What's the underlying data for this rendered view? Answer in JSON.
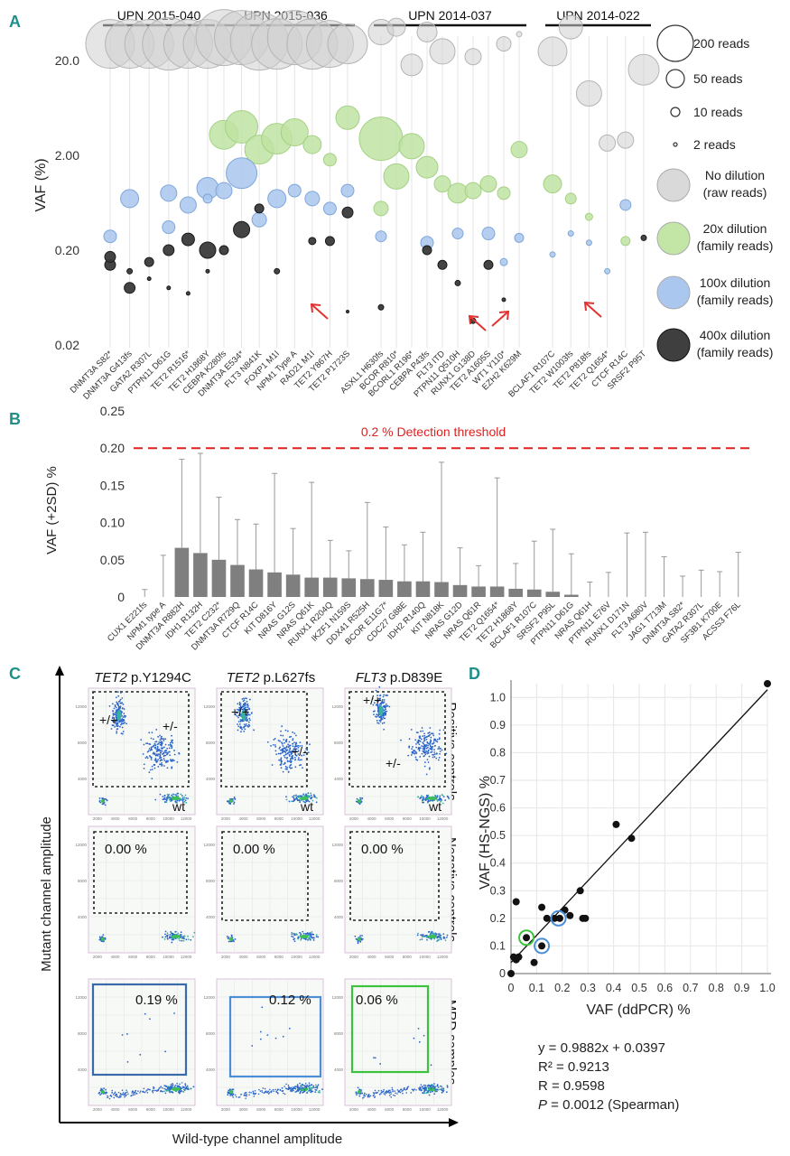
{
  "colors": {
    "panel_letter": "#1f8f8a",
    "raw": "#cfcfcf",
    "family20": "#bfe3a3",
    "family100": "#a9c7ee",
    "family400": "#3a3a3a",
    "threshold": "#e02020",
    "bar": "#7f7f7f",
    "gate_blue_dark": "#3b6aa8",
    "gate_blue": "#4d8fd6",
    "gate_green": "#3cc23c",
    "arrow": "#e33030"
  },
  "chart_data": [
    {
      "panel": "A",
      "type": "scatter",
      "ylabel": "VAF (%)",
      "scale": "log",
      "y_ticks": [
        "20.0",
        "2.00",
        "0.20",
        "0.02"
      ],
      "groups": [
        {
          "name": "UPN 2015-040",
          "labels": [
            "DNMT3A S82*",
            "DNMT3A G413fs",
            "GATA2 R307L",
            "PTPN11 D61G",
            "TET2 R1516*",
            "TET2 H1868Y"
          ]
        },
        {
          "name": "UPN 2015-036",
          "labels": [
            "CEBPA K280fs",
            "DNMT3A E534*",
            "FLT3 N841K",
            "FOXP1 M1I",
            "NPM1 Type A",
            "RAD21 M1I",
            "TET2 Y867H",
            "TET2 P1723S"
          ]
        },
        {
          "name": "UPN 2014-037",
          "labels": [
            "ASXL1 H630fs",
            "BCOR R810*",
            "BCORL1 R196*",
            "CEBPA P43fs",
            "FLT3 ITD",
            "PTPN11 Q510H",
            "RUNX1 G138D",
            "TET2 A1605S",
            "WT1 Y110*",
            "EZH2 K629M"
          ]
        },
        {
          "name": "UPN 2014-022",
          "labels": [
            "BCLAF1 R107C",
            "TET2 W1003fs",
            "TET2 P818fs",
            "TET2 Q1654*",
            "CTCF R14C",
            "SRSF2 P95T"
          ]
        }
      ],
      "legend_sizes": [
        {
          "label": "200 reads",
          "reads": 200
        },
        {
          "label": "50 reads",
          "reads": 50
        },
        {
          "label": "10 reads",
          "reads": 10
        },
        {
          "label": "2 reads",
          "reads": 2
        }
      ],
      "legend_series": [
        {
          "label1": "No dilution",
          "label2": "(raw reads)",
          "color": "#d9d9d9"
        },
        {
          "label1": "20x dilution",
          "label2": "(family reads)",
          "color": "#c3e6a6"
        },
        {
          "label1": "100x dilution",
          "label2": "(family reads)",
          "color": "#aac8ef"
        },
        {
          "label1": "400x dilution",
          "label2": "(family reads)",
          "color": "#3f3f3f"
        }
      ],
      "points": [
        {
          "m": 0,
          "s": 0,
          "vaf": 30,
          "r": 27
        },
        {
          "m": 1,
          "s": 0,
          "vaf": 30,
          "r": 27
        },
        {
          "m": 2,
          "s": 0,
          "vaf": 30,
          "r": 27
        },
        {
          "m": 3,
          "s": 0,
          "vaf": 30,
          "r": 29
        },
        {
          "m": 4,
          "s": 0,
          "vaf": 30,
          "r": 27
        },
        {
          "m": 5,
          "s": 0,
          "vaf": 30,
          "r": 27
        },
        {
          "m": 1,
          "s": 2,
          "vaf": 0.7,
          "r": 10
        },
        {
          "m": 3,
          "s": 2,
          "vaf": 0.8,
          "r": 9
        },
        {
          "m": 5,
          "s": 2,
          "vaf": 0.9,
          "r": 12
        },
        {
          "m": 0,
          "s": 2,
          "vaf": 0.28,
          "r": 7
        },
        {
          "m": 3,
          "s": 2,
          "vaf": 0.35,
          "r": 7
        },
        {
          "m": 4,
          "s": 2,
          "vaf": 0.6,
          "r": 9
        },
        {
          "m": 0,
          "s": 3,
          "vaf": 0.14,
          "r": 6
        },
        {
          "m": 1,
          "s": 3,
          "vaf": 0.08,
          "r": 6
        },
        {
          "m": 2,
          "s": 3,
          "vaf": 0.15,
          "r": 5
        },
        {
          "m": 3,
          "s": 3,
          "vaf": 0.2,
          "r": 6
        },
        {
          "m": 4,
          "s": 3,
          "vaf": 0.26,
          "r": 7
        },
        {
          "m": 5,
          "s": 3,
          "vaf": 0.2,
          "r": 9
        },
        {
          "m": 0,
          "s": 0,
          "vaf": 35,
          "r": 31
        },
        {
          "m": 1,
          "s": 0,
          "vaf": 35,
          "r": 30
        },
        {
          "m": 2,
          "s": 0,
          "vaf": 32,
          "r": 32
        },
        {
          "m": 3,
          "s": 0,
          "vaf": 30,
          "r": 28
        },
        {
          "m": 4,
          "s": 0,
          "vaf": 35,
          "r": 30
        },
        {
          "m": 5,
          "s": 0,
          "vaf": 30,
          "r": 28
        },
        {
          "m": 6,
          "s": 0,
          "vaf": 30,
          "r": 26
        },
        {
          "m": 7,
          "s": 0,
          "vaf": 30,
          "r": 22
        },
        {
          "m": 0,
          "s": 1,
          "vaf": 3.3,
          "r": 16
        },
        {
          "m": 1,
          "s": 1,
          "vaf": 4.0,
          "r": 18
        },
        {
          "m": 2,
          "s": 1,
          "vaf": 2.3,
          "r": 16
        },
        {
          "m": 3,
          "s": 1,
          "vaf": 3.0,
          "r": 17
        },
        {
          "m": 4,
          "s": 1,
          "vaf": 3.5,
          "r": 15
        },
        {
          "m": 5,
          "s": 1,
          "vaf": 2.6,
          "r": 10
        },
        {
          "m": 6,
          "s": 1,
          "vaf": 1.8,
          "r": 7
        },
        {
          "m": 7,
          "s": 1,
          "vaf": 5.0,
          "r": 13
        },
        {
          "m": 0,
          "s": 2,
          "vaf": 0.85,
          "r": 9
        },
        {
          "m": 1,
          "s": 2,
          "vaf": 1.3,
          "r": 17
        },
        {
          "m": 2,
          "s": 2,
          "vaf": 0.42,
          "r": 8
        },
        {
          "m": 3,
          "s": 2,
          "vaf": 0.7,
          "r": 10
        },
        {
          "m": 4,
          "s": 2,
          "vaf": 0.85,
          "r": 7
        },
        {
          "m": 5,
          "s": 2,
          "vaf": 0.7,
          "r": 8
        },
        {
          "m": 6,
          "s": 2,
          "vaf": 0.55,
          "r": 7
        },
        {
          "m": 7,
          "s": 2,
          "vaf": 0.85,
          "r": 7
        },
        {
          "m": 0,
          "s": 3,
          "vaf": 0.2,
          "r": 5
        },
        {
          "m": 1,
          "s": 3,
          "vaf": 0.33,
          "r": 9
        },
        {
          "m": 2,
          "s": 3,
          "vaf": 0.55,
          "r": 5
        },
        {
          "m": 3,
          "s": 3,
          "vaf": 0.12,
          "r": 3
        },
        {
          "m": 5,
          "s": 3,
          "vaf": 0.25,
          "r": 4
        },
        {
          "m": 6,
          "s": 3,
          "vaf": 0.25,
          "r": 5
        },
        {
          "m": 7,
          "s": 3,
          "vaf": 0.5,
          "r": 6
        },
        {
          "m": 7,
          "s": 3,
          "vaf": 0.045,
          "r": 1.5
        },
        {
          "m": 0,
          "s": 0,
          "vaf": 40,
          "r": 14
        },
        {
          "m": 1,
          "s": 0,
          "vaf": 45,
          "r": 10
        },
        {
          "m": 2,
          "s": 0,
          "vaf": 18,
          "r": 12
        },
        {
          "m": 3,
          "s": 0,
          "vaf": 40,
          "r": 11
        },
        {
          "m": 4,
          "s": 0,
          "vaf": 25,
          "r": 14
        },
        {
          "m": 6,
          "s": 0,
          "vaf": 22,
          "r": 9
        },
        {
          "m": 8,
          "s": 0,
          "vaf": 30,
          "r": 8
        },
        {
          "m": 9,
          "s": 0,
          "vaf": 38,
          "r": 3
        },
        {
          "m": 0,
          "s": 1,
          "vaf": 3.0,
          "r": 24
        },
        {
          "m": 1,
          "s": 1,
          "vaf": 1.2,
          "r": 14
        },
        {
          "m": 2,
          "s": 1,
          "vaf": 2.5,
          "r": 14
        },
        {
          "m": 3,
          "s": 1,
          "vaf": 1.5,
          "r": 12
        },
        {
          "m": 4,
          "s": 1,
          "vaf": 1.0,
          "r": 9
        },
        {
          "m": 5,
          "s": 1,
          "vaf": 0.8,
          "r": 11
        },
        {
          "m": 6,
          "s": 1,
          "vaf": 0.85,
          "r": 9
        },
        {
          "m": 7,
          "s": 1,
          "vaf": 1.0,
          "r": 9
        },
        {
          "m": 8,
          "s": 1,
          "vaf": 0.8,
          "r": 7
        },
        {
          "m": 9,
          "s": 1,
          "vaf": 2.3,
          "r": 9
        },
        {
          "m": 0,
          "s": 1,
          "vaf": 0.55,
          "r": 8
        },
        {
          "m": 0,
          "s": 2,
          "vaf": 0.28,
          "r": 6
        },
        {
          "m": 3,
          "s": 2,
          "vaf": 0.24,
          "r": 7
        },
        {
          "m": 5,
          "s": 2,
          "vaf": 0.3,
          "r": 6
        },
        {
          "m": 7,
          "s": 2,
          "vaf": 0.3,
          "r": 7
        },
        {
          "m": 8,
          "s": 2,
          "vaf": 0.15,
          "r": 4
        },
        {
          "m": 9,
          "s": 2,
          "vaf": 0.27,
          "r": 5
        },
        {
          "m": 0,
          "s": 3,
          "vaf": 0.05,
          "r": 3
        },
        {
          "m": 3,
          "s": 3,
          "vaf": 0.2,
          "r": 5
        },
        {
          "m": 4,
          "s": 3,
          "vaf": 0.14,
          "r": 5
        },
        {
          "m": 5,
          "s": 3,
          "vaf": 0.09,
          "r": 3
        },
        {
          "m": 6,
          "s": 3,
          "vaf": 0.036,
          "r": 3
        },
        {
          "m": 7,
          "s": 3,
          "vaf": 0.14,
          "r": 5
        },
        {
          "m": 8,
          "s": 3,
          "vaf": 0.06,
          "r": 2
        },
        {
          "m": 9,
          "s": 3,
          "vaf": 0.27,
          "r": 3
        },
        {
          "m": 0,
          "s": 0,
          "vaf": 25,
          "r": 16
        },
        {
          "m": 1,
          "s": 0,
          "vaf": 45,
          "r": 13
        },
        {
          "m": 2,
          "s": 0,
          "vaf": 9,
          "r": 14
        },
        {
          "m": 3,
          "s": 0,
          "vaf": 2.7,
          "r": 9
        },
        {
          "m": 4,
          "s": 0,
          "vaf": 2.9,
          "r": 9
        },
        {
          "m": 5,
          "s": 0,
          "vaf": 16,
          "r": 17
        },
        {
          "m": 0,
          "s": 1,
          "vaf": 1.0,
          "r": 10
        },
        {
          "m": 1,
          "s": 1,
          "vaf": 0.7,
          "r": 6
        },
        {
          "m": 2,
          "s": 1,
          "vaf": 0.45,
          "r": 4
        },
        {
          "m": 4,
          "s": 1,
          "vaf": 0.25,
          "r": 5
        },
        {
          "m": 0,
          "s": 2,
          "vaf": 0.18,
          "r": 3
        },
        {
          "m": 1,
          "s": 2,
          "vaf": 0.3,
          "r": 3
        },
        {
          "m": 2,
          "s": 2,
          "vaf": 0.24,
          "r": 3
        },
        {
          "m": 3,
          "s": 2,
          "vaf": 0.12,
          "r": 3
        },
        {
          "m": 4,
          "s": 2,
          "vaf": 0.6,
          "r": 6
        },
        {
          "m": 5,
          "s": 2,
          "vaf": 0.7,
          "r": 5
        },
        {
          "m": 0,
          "s": 3,
          "vaf": 0.17,
          "r": 6
        },
        {
          "m": 1,
          "s": 3,
          "vaf": 0.12,
          "r": 3
        },
        {
          "m": 2,
          "s": 3,
          "vaf": 0.1,
          "r": 2
        },
        {
          "m": 3,
          "s": 3,
          "vaf": 0.08,
          "r": 2
        },
        {
          "m": 4,
          "s": 3,
          "vaf": 0.07,
          "r": 2
        },
        {
          "m": 5,
          "s": 3,
          "vaf": 0.12,
          "r": 2
        }
      ]
    },
    {
      "panel": "B",
      "type": "bar",
      "ylabel": "VAF (+2SD) %",
      "ylim": [
        0,
        0.25
      ],
      "y_ticks": [
        "0",
        "0.05",
        "0.10",
        "0.15",
        "0.20",
        "0.25"
      ],
      "threshold": 0.2,
      "threshold_label": "0.2 % Detection threshold",
      "categories": [
        "CUX1 E221fs",
        "NPM1 type A",
        "DNMT3A R882H",
        "IDH1 R132H",
        "TET2 C232*",
        "DNMT3A R729Q",
        "CTCF R14C",
        "KIT D816Y",
        "NRAS G12S",
        "NRAS Q61K",
        "RUNX1 R204Q",
        "IKZF1 N159S",
        "DDX41 R525H",
        "BCOR E11G7*",
        "CDC27 G88E",
        "IDH2 R140Q",
        "KIT N818K",
        "NRAS G12D",
        "NRAS Q61R",
        "TET2 Q1654*",
        "TET2 H1868Y",
        "BCLAF1 R107C",
        "SRSF2 P95L",
        "PTPN11 D61G",
        "NRAS Q61H",
        "PTPN11 E76V",
        "RUNX1 D171N",
        "FLT3 A680V",
        "JAG1 T713M",
        "DNMT3A S82*",
        "GATA2 R307L",
        "SF3B1 K700E",
        "ACSS3 F76L"
      ],
      "values": [
        0,
        0,
        0.066,
        0.059,
        0.05,
        0.043,
        0.037,
        0.033,
        0.03,
        0.026,
        0.026,
        0.025,
        0.024,
        0.023,
        0.021,
        0.021,
        0.02,
        0.016,
        0.014,
        0.014,
        0.011,
        0.01,
        0.007,
        0.003,
        0,
        0,
        0,
        0,
        0,
        0,
        0,
        0,
        0
      ],
      "errors_top": [
        0.01,
        0.056,
        0.185,
        0.193,
        0.134,
        0.104,
        0.098,
        0.166,
        0.092,
        0.154,
        0.076,
        0.062,
        0.127,
        0.094,
        0.07,
        0.087,
        0.181,
        0.066,
        0.042,
        0.16,
        0.045,
        0.075,
        0.091,
        0.058,
        0.02,
        0.033,
        0.086,
        0.087,
        0.054,
        0.028,
        0.036,
        0.034,
        0.06
      ]
    },
    {
      "panel": "C",
      "type": "scatter",
      "xlabel": "Wild-type channel amplitude",
      "ylabel": "Mutant channel amplitude",
      "columns": [
        "TET2 p.Y1294C",
        "TET2 p.L627fs",
        "FLT3 p.D839E"
      ],
      "col_gene": [
        "TET2",
        "TET2",
        "FLT3"
      ],
      "col_variant": [
        "p.Y1294C",
        "p.L627fs",
        "p.D839E"
      ],
      "rows": [
        "Positive controls",
        "Negative controls",
        "MRD samples"
      ],
      "cluster_labels": [
        "+/+",
        "+/-",
        "wt"
      ],
      "negative_values": [
        "0.00 %",
        "0.00 %",
        "0.00 %"
      ],
      "mrd_values": [
        "0.19 %",
        "0.12 %",
        "0.06 %"
      ],
      "x_ticks": [
        "2000",
        "4000",
        "6000",
        "8000",
        "10000",
        "12000"
      ],
      "y_ticks": [
        "2000",
        "4000",
        "6000",
        "8000",
        "10000",
        "12000",
        "14000"
      ]
    },
    {
      "panel": "D",
      "type": "scatter",
      "xlabel": "VAF (ddPCR) %",
      "ylabel": "VAF (HS-NGS) %",
      "xlim": [
        0,
        1.0
      ],
      "ylim": [
        0,
        1.05
      ],
      "x_ticks": [
        "0",
        "0.1",
        "0.2",
        "0.3",
        "0.4",
        "0.5",
        "0.6",
        "0.7",
        "0.8",
        "0.9",
        "1.0"
      ],
      "y_ticks": [
        "0",
        "0.1",
        "0.2",
        "0.3",
        "0.4",
        "0.5",
        "0.6",
        "0.7",
        "0.8",
        "0.9",
        "1.0"
      ],
      "x": [
        0,
        0.01,
        0.02,
        0.03,
        0.02,
        0.06,
        0.09,
        0.12,
        0.12,
        0.14,
        0.17,
        0.19,
        0.21,
        0.23,
        0.27,
        0.28,
        0.29,
        0.41,
        0.47,
        1.0
      ],
      "y": [
        0,
        0.06,
        0.05,
        0.06,
        0.26,
        0.13,
        0.04,
        0.1,
        0.24,
        0.2,
        0.2,
        0.2,
        0.23,
        0.21,
        0.3,
        0.2,
        0.2,
        0.54,
        0.49,
        1.05
      ],
      "highlight_green": [
        0.06,
        0.13
      ],
      "highlight_blue": [
        [
          0.12,
          0.1
        ],
        [
          0.185,
          0.2
        ]
      ],
      "fit_slope": 0.9882,
      "fit_intercept": 0.0397,
      "stats": [
        "y = 0.9882x + 0.0397",
        "R² = 0.9213",
        "R = 0.9598",
        "P = 0.0012 (Spearman)"
      ],
      "stat_p_symbol": "P",
      "stat_p_rest": " = 0.0012 (Spearman)"
    }
  ],
  "panel_letters": [
    "A",
    "B",
    "C",
    "D"
  ]
}
